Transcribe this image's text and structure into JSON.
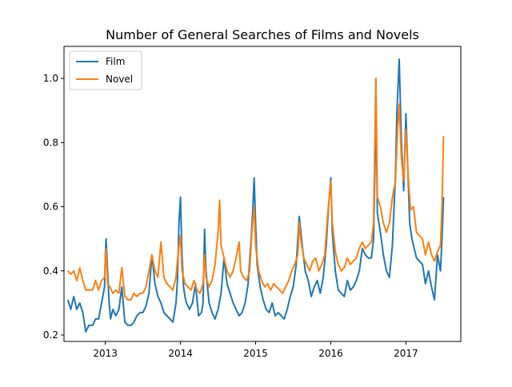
{
  "chart_data": {
    "type": "line",
    "title": "Number of General Searches of Films and Novels",
    "xlabel": "",
    "ylabel": "",
    "x_unit": "year",
    "xlim": [
      2012.45,
      2017.73
    ],
    "ylim": [
      0.18,
      1.1
    ],
    "x_ticks": [
      {
        "value": 2013,
        "label": "2013"
      },
      {
        "value": 2014,
        "label": "2014"
      },
      {
        "value": 2015,
        "label": "2015"
      },
      {
        "value": 2016,
        "label": "2016"
      },
      {
        "value": 2017,
        "label": "2017"
      }
    ],
    "y_ticks": [
      {
        "value": 0.2,
        "label": "0.2"
      },
      {
        "value": 0.4,
        "label": "0.4"
      },
      {
        "value": 0.6,
        "label": "0.6"
      },
      {
        "value": 0.8,
        "label": "0.8"
      },
      {
        "value": 1.0,
        "label": "1.0"
      }
    ],
    "grid": false,
    "legend": "top-left",
    "series": [
      {
        "name": "Film",
        "color": "#1f77b4",
        "points": [
          [
            2012.5,
            0.31
          ],
          [
            2012.54,
            0.28
          ],
          [
            2012.58,
            0.32
          ],
          [
            2012.62,
            0.28
          ],
          [
            2012.66,
            0.3
          ],
          [
            2012.7,
            0.27
          ],
          [
            2012.74,
            0.21
          ],
          [
            2012.78,
            0.23
          ],
          [
            2012.83,
            0.23
          ],
          [
            2012.87,
            0.25
          ],
          [
            2012.91,
            0.25
          ],
          [
            2012.95,
            0.3
          ],
          [
            2012.99,
            0.35
          ],
          [
            2013.0,
            0.45
          ],
          [
            2013.01,
            0.5
          ],
          [
            2013.03,
            0.4
          ],
          [
            2013.05,
            0.3
          ],
          [
            2013.07,
            0.25
          ],
          [
            2013.1,
            0.28
          ],
          [
            2013.14,
            0.26
          ],
          [
            2013.18,
            0.28
          ],
          [
            2013.22,
            0.35
          ],
          [
            2013.26,
            0.24
          ],
          [
            2013.3,
            0.23
          ],
          [
            2013.34,
            0.23
          ],
          [
            2013.38,
            0.24
          ],
          [
            2013.42,
            0.26
          ],
          [
            2013.46,
            0.27
          ],
          [
            2013.5,
            0.27
          ],
          [
            2013.54,
            0.29
          ],
          [
            2013.58,
            0.33
          ],
          [
            2013.62,
            0.45
          ],
          [
            2013.66,
            0.36
          ],
          [
            2013.7,
            0.32
          ],
          [
            2013.74,
            0.3
          ],
          [
            2013.78,
            0.27
          ],
          [
            2013.82,
            0.26
          ],
          [
            2013.86,
            0.25
          ],
          [
            2013.9,
            0.24
          ],
          [
            2013.94,
            0.3
          ],
          [
            2013.96,
            0.37
          ],
          [
            2013.98,
            0.55
          ],
          [
            2014.0,
            0.63
          ],
          [
            2014.02,
            0.45
          ],
          [
            2014.04,
            0.35
          ],
          [
            2014.06,
            0.32
          ],
          [
            2014.08,
            0.3
          ],
          [
            2014.12,
            0.28
          ],
          [
            2014.16,
            0.3
          ],
          [
            2014.2,
            0.36
          ],
          [
            2014.24,
            0.26
          ],
          [
            2014.28,
            0.27
          ],
          [
            2014.3,
            0.3
          ],
          [
            2014.32,
            0.53
          ],
          [
            2014.34,
            0.4
          ],
          [
            2014.38,
            0.3
          ],
          [
            2014.42,
            0.27
          ],
          [
            2014.46,
            0.25
          ],
          [
            2014.5,
            0.28
          ],
          [
            2014.54,
            0.33
          ],
          [
            2014.58,
            0.44
          ],
          [
            2014.62,
            0.36
          ],
          [
            2014.66,
            0.33
          ],
          [
            2014.7,
            0.3
          ],
          [
            2014.74,
            0.28
          ],
          [
            2014.78,
            0.26
          ],
          [
            2014.82,
            0.27
          ],
          [
            2014.86,
            0.3
          ],
          [
            2014.9,
            0.36
          ],
          [
            2014.94,
            0.5
          ],
          [
            2014.96,
            0.58
          ],
          [
            2014.98,
            0.69
          ],
          [
            2015.0,
            0.55
          ],
          [
            2015.02,
            0.42
          ],
          [
            2015.06,
            0.35
          ],
          [
            2015.1,
            0.31
          ],
          [
            2015.14,
            0.28
          ],
          [
            2015.18,
            0.27
          ],
          [
            2015.22,
            0.3
          ],
          [
            2015.26,
            0.26
          ],
          [
            2015.3,
            0.27
          ],
          [
            2015.34,
            0.26
          ],
          [
            2015.38,
            0.25
          ],
          [
            2015.42,
            0.28
          ],
          [
            2015.46,
            0.32
          ],
          [
            2015.5,
            0.35
          ],
          [
            2015.54,
            0.42
          ],
          [
            2015.58,
            0.57
          ],
          [
            2015.62,
            0.48
          ],
          [
            2015.66,
            0.4
          ],
          [
            2015.7,
            0.37
          ],
          [
            2015.74,
            0.32
          ],
          [
            2015.78,
            0.35
          ],
          [
            2015.82,
            0.37
          ],
          [
            2015.86,
            0.33
          ],
          [
            2015.9,
            0.38
          ],
          [
            2015.94,
            0.48
          ],
          [
            2015.97,
            0.6
          ],
          [
            2016.0,
            0.69
          ],
          [
            2016.02,
            0.52
          ],
          [
            2016.06,
            0.4
          ],
          [
            2016.1,
            0.34
          ],
          [
            2016.14,
            0.33
          ],
          [
            2016.18,
            0.32
          ],
          [
            2016.22,
            0.37
          ],
          [
            2016.26,
            0.34
          ],
          [
            2016.3,
            0.35
          ],
          [
            2016.34,
            0.37
          ],
          [
            2016.38,
            0.4
          ],
          [
            2016.42,
            0.47
          ],
          [
            2016.46,
            0.45
          ],
          [
            2016.5,
            0.44
          ],
          [
            2016.54,
            0.44
          ],
          [
            2016.57,
            0.5
          ],
          [
            2016.59,
            0.75
          ],
          [
            2016.6,
            1.0
          ],
          [
            2016.62,
            0.58
          ],
          [
            2016.66,
            0.52
          ],
          [
            2016.7,
            0.45
          ],
          [
            2016.74,
            0.4
          ],
          [
            2016.78,
            0.38
          ],
          [
            2016.82,
            0.48
          ],
          [
            2016.86,
            0.7
          ],
          [
            2016.88,
            0.9
          ],
          [
            2016.91,
            1.06
          ],
          [
            2016.94,
            0.8
          ],
          [
            2016.97,
            0.65
          ],
          [
            2017.0,
            0.89
          ],
          [
            2017.02,
            0.75
          ],
          [
            2017.05,
            0.55
          ],
          [
            2017.08,
            0.5
          ],
          [
            2017.1,
            0.48
          ],
          [
            2017.14,
            0.44
          ],
          [
            2017.18,
            0.43
          ],
          [
            2017.22,
            0.42
          ],
          [
            2017.26,
            0.36
          ],
          [
            2017.3,
            0.4
          ],
          [
            2017.34,
            0.35
          ],
          [
            2017.38,
            0.31
          ],
          [
            2017.42,
            0.45
          ],
          [
            2017.46,
            0.4
          ],
          [
            2017.48,
            0.5
          ],
          [
            2017.5,
            0.63
          ]
        ]
      },
      {
        "name": "Novel",
        "color": "#ff7f0e",
        "points": [
          [
            2012.5,
            0.4
          ],
          [
            2012.54,
            0.39
          ],
          [
            2012.58,
            0.4
          ],
          [
            2012.62,
            0.37
          ],
          [
            2012.66,
            0.41
          ],
          [
            2012.7,
            0.37
          ],
          [
            2012.74,
            0.34
          ],
          [
            2012.78,
            0.34
          ],
          [
            2012.83,
            0.34
          ],
          [
            2012.87,
            0.37
          ],
          [
            2012.91,
            0.34
          ],
          [
            2012.95,
            0.37
          ],
          [
            2012.99,
            0.38
          ],
          [
            2013.0,
            0.44
          ],
          [
            2013.01,
            0.47
          ],
          [
            2013.03,
            0.36
          ],
          [
            2013.06,
            0.35
          ],
          [
            2013.1,
            0.33
          ],
          [
            2013.14,
            0.34
          ],
          [
            2013.18,
            0.33
          ],
          [
            2013.22,
            0.41
          ],
          [
            2013.26,
            0.32
          ],
          [
            2013.3,
            0.31
          ],
          [
            2013.34,
            0.31
          ],
          [
            2013.38,
            0.33
          ],
          [
            2013.42,
            0.32
          ],
          [
            2013.46,
            0.33
          ],
          [
            2013.5,
            0.33
          ],
          [
            2013.54,
            0.35
          ],
          [
            2013.58,
            0.4
          ],
          [
            2013.62,
            0.45
          ],
          [
            2013.66,
            0.4
          ],
          [
            2013.7,
            0.38
          ],
          [
            2013.74,
            0.49
          ],
          [
            2013.78,
            0.38
          ],
          [
            2013.82,
            0.36
          ],
          [
            2013.86,
            0.35
          ],
          [
            2013.9,
            0.34
          ],
          [
            2013.94,
            0.38
          ],
          [
            2013.97,
            0.46
          ],
          [
            2014.0,
            0.51
          ],
          [
            2014.02,
            0.4
          ],
          [
            2014.06,
            0.36
          ],
          [
            2014.1,
            0.35
          ],
          [
            2014.14,
            0.34
          ],
          [
            2014.18,
            0.37
          ],
          [
            2014.22,
            0.34
          ],
          [
            2014.26,
            0.33
          ],
          [
            2014.3,
            0.36
          ],
          [
            2014.32,
            0.45
          ],
          [
            2014.34,
            0.38
          ],
          [
            2014.38,
            0.35
          ],
          [
            2014.42,
            0.37
          ],
          [
            2014.46,
            0.42
          ],
          [
            2014.5,
            0.52
          ],
          [
            2014.52,
            0.62
          ],
          [
            2014.54,
            0.48
          ],
          [
            2014.58,
            0.44
          ],
          [
            2014.62,
            0.4
          ],
          [
            2014.66,
            0.38
          ],
          [
            2014.7,
            0.4
          ],
          [
            2014.74,
            0.44
          ],
          [
            2014.78,
            0.49
          ],
          [
            2014.8,
            0.4
          ],
          [
            2014.84,
            0.38
          ],
          [
            2014.88,
            0.37
          ],
          [
            2014.92,
            0.4
          ],
          [
            2014.95,
            0.52
          ],
          [
            2014.98,
            0.6
          ],
          [
            2015.0,
            0.48
          ],
          [
            2015.04,
            0.4
          ],
          [
            2015.08,
            0.37
          ],
          [
            2015.12,
            0.35
          ],
          [
            2015.16,
            0.36
          ],
          [
            2015.2,
            0.34
          ],
          [
            2015.24,
            0.36
          ],
          [
            2015.28,
            0.35
          ],
          [
            2015.32,
            0.34
          ],
          [
            2015.36,
            0.33
          ],
          [
            2015.4,
            0.35
          ],
          [
            2015.44,
            0.37
          ],
          [
            2015.48,
            0.4
          ],
          [
            2015.52,
            0.42
          ],
          [
            2015.56,
            0.45
          ],
          [
            2015.58,
            0.55
          ],
          [
            2015.6,
            0.5
          ],
          [
            2015.64,
            0.44
          ],
          [
            2015.68,
            0.42
          ],
          [
            2015.72,
            0.4
          ],
          [
            2015.76,
            0.43
          ],
          [
            2015.8,
            0.44
          ],
          [
            2015.84,
            0.4
          ],
          [
            2015.88,
            0.42
          ],
          [
            2015.92,
            0.45
          ],
          [
            2015.96,
            0.58
          ],
          [
            2016.0,
            0.68
          ],
          [
            2016.02,
            0.55
          ],
          [
            2016.06,
            0.46
          ],
          [
            2016.1,
            0.42
          ],
          [
            2016.14,
            0.4
          ],
          [
            2016.18,
            0.41
          ],
          [
            2016.22,
            0.44
          ],
          [
            2016.26,
            0.42
          ],
          [
            2016.3,
            0.43
          ],
          [
            2016.34,
            0.44
          ],
          [
            2016.38,
            0.47
          ],
          [
            2016.42,
            0.49
          ],
          [
            2016.46,
            0.47
          ],
          [
            2016.5,
            0.48
          ],
          [
            2016.54,
            0.49
          ],
          [
            2016.57,
            0.55
          ],
          [
            2016.6,
            1.0
          ],
          [
            2016.62,
            0.63
          ],
          [
            2016.66,
            0.6
          ],
          [
            2016.7,
            0.55
          ],
          [
            2016.74,
            0.52
          ],
          [
            2016.78,
            0.55
          ],
          [
            2016.82,
            0.63
          ],
          [
            2016.86,
            0.68
          ],
          [
            2016.89,
            0.85
          ],
          [
            2016.91,
            0.92
          ],
          [
            2016.94,
            0.75
          ],
          [
            2016.97,
            0.68
          ],
          [
            2017.0,
            0.84
          ],
          [
            2017.03,
            0.7
          ],
          [
            2017.06,
            0.59
          ],
          [
            2017.1,
            0.6
          ],
          [
            2017.14,
            0.52
          ],
          [
            2017.18,
            0.51
          ],
          [
            2017.22,
            0.5
          ],
          [
            2017.26,
            0.45
          ],
          [
            2017.3,
            0.49
          ],
          [
            2017.34,
            0.45
          ],
          [
            2017.38,
            0.43
          ],
          [
            2017.42,
            0.46
          ],
          [
            2017.46,
            0.48
          ],
          [
            2017.48,
            0.6
          ],
          [
            2017.5,
            0.82
          ]
        ]
      }
    ]
  }
}
